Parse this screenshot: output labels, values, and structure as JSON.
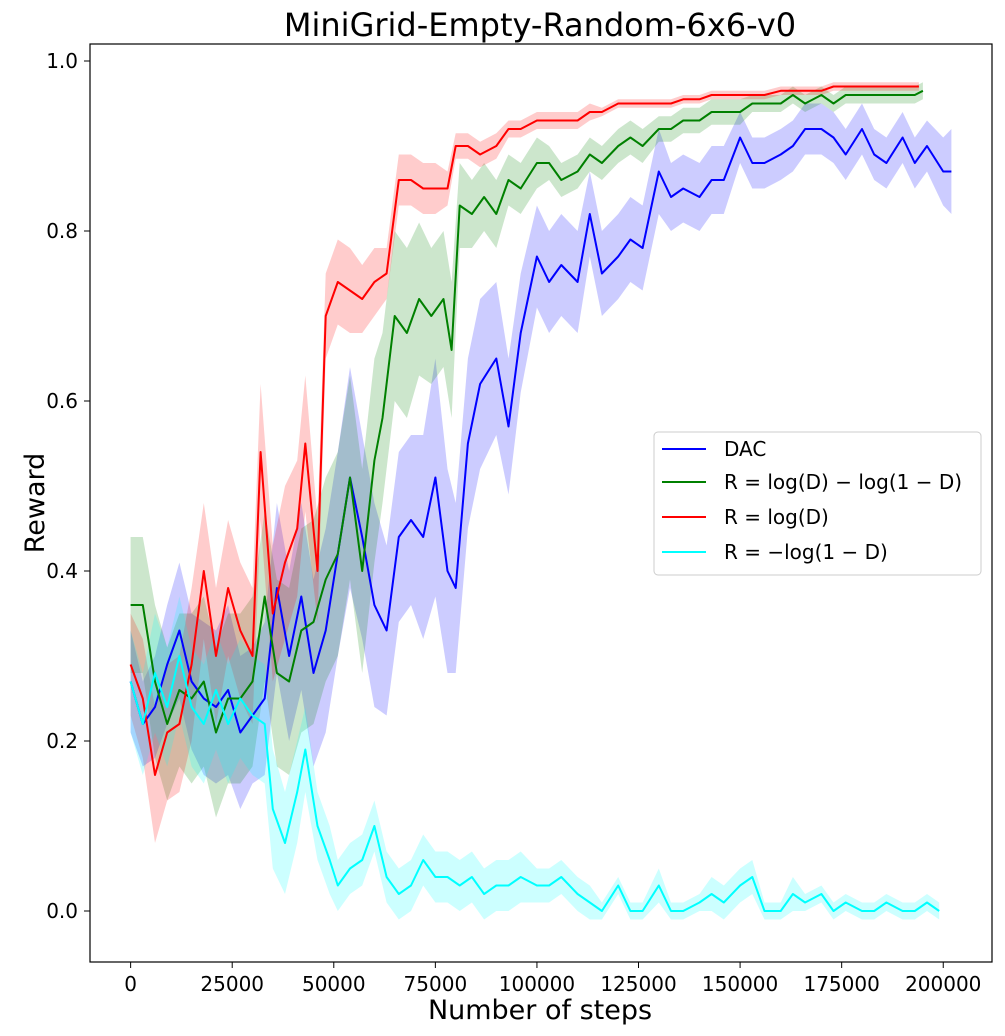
{
  "chart_data": {
    "type": "line",
    "title": "MiniGrid-Empty-Random-6x6-v0",
    "xlabel": "Number of steps",
    "ylabel": "Reward",
    "xlim": [
      -10000,
      212000
    ],
    "ylim": [
      -0.06,
      1.02
    ],
    "xticks": [
      0,
      25000,
      50000,
      75000,
      100000,
      125000,
      150000,
      175000,
      200000
    ],
    "yticks": [
      0.0,
      0.2,
      0.4,
      0.6,
      0.8,
      1.0
    ],
    "ytick_labels": [
      "0.0",
      "0.2",
      "0.4",
      "0.6",
      "0.8",
      "1.0"
    ],
    "legend_position": "center-right",
    "grid": false,
    "series": [
      {
        "name": "DAC",
        "color": "#0000ff",
        "x": [
          0,
          3000,
          6000,
          9000,
          12000,
          15000,
          18000,
          21000,
          24000,
          27000,
          30000,
          33000,
          36000,
          39000,
          42000,
          45000,
          48000,
          51000,
          54000,
          57000,
          60000,
          63000,
          66000,
          69000,
          72000,
          75000,
          78000,
          80000,
          83000,
          86000,
          90000,
          93000,
          96000,
          100000,
          103000,
          106000,
          110000,
          113000,
          116000,
          120000,
          123000,
          126000,
          130000,
          133000,
          136000,
          140000,
          143000,
          146000,
          150000,
          153000,
          156000,
          160000,
          163000,
          166000,
          170000,
          173000,
          176000,
          180000,
          183000,
          186000,
          190000,
          193000,
          196000,
          200000,
          202000
        ],
        "y": [
          0.27,
          0.22,
          0.24,
          0.29,
          0.33,
          0.27,
          0.25,
          0.24,
          0.26,
          0.21,
          0.23,
          0.25,
          0.38,
          0.3,
          0.37,
          0.28,
          0.33,
          0.42,
          0.51,
          0.44,
          0.36,
          0.33,
          0.44,
          0.46,
          0.44,
          0.51,
          0.4,
          0.38,
          0.55,
          0.62,
          0.65,
          0.57,
          0.68,
          0.77,
          0.74,
          0.76,
          0.74,
          0.82,
          0.75,
          0.77,
          0.79,
          0.78,
          0.87,
          0.84,
          0.85,
          0.84,
          0.86,
          0.86,
          0.91,
          0.88,
          0.88,
          0.89,
          0.9,
          0.92,
          0.92,
          0.91,
          0.89,
          0.92,
          0.89,
          0.88,
          0.91,
          0.88,
          0.9,
          0.87,
          0.87
        ],
        "band": [
          0.06,
          0.05,
          0.06,
          0.07,
          0.08,
          0.08,
          0.09,
          0.09,
          0.1,
          0.09,
          0.08,
          0.09,
          0.1,
          0.1,
          0.11,
          0.11,
          0.12,
          0.12,
          0.13,
          0.12,
          0.12,
          0.1,
          0.1,
          0.1,
          0.12,
          0.14,
          0.12,
          0.1,
          0.1,
          0.1,
          0.09,
          0.08,
          0.07,
          0.06,
          0.06,
          0.06,
          0.06,
          0.05,
          0.05,
          0.05,
          0.05,
          0.05,
          0.05,
          0.04,
          0.04,
          0.04,
          0.04,
          0.04,
          0.03,
          0.03,
          0.03,
          0.03,
          0.03,
          0.03,
          0.03,
          0.03,
          0.03,
          0.03,
          0.03,
          0.03,
          0.03,
          0.03,
          0.03,
          0.04,
          0.05
        ]
      },
      {
        "name": "R = log(D) − log(1 − D)",
        "color": "#008000",
        "x": [
          0,
          3000,
          6000,
          9000,
          12000,
          15000,
          18000,
          21000,
          24000,
          27000,
          30000,
          33000,
          36000,
          39000,
          42000,
          45000,
          48000,
          51000,
          54000,
          57000,
          60000,
          62000,
          65000,
          68000,
          71000,
          74000,
          77000,
          79000,
          81000,
          84000,
          87000,
          90000,
          93000,
          96000,
          100000,
          103000,
          106000,
          110000,
          113000,
          116000,
          120000,
          123000,
          126000,
          130000,
          133000,
          136000,
          140000,
          143000,
          146000,
          150000,
          153000,
          156000,
          160000,
          163000,
          166000,
          170000,
          173000,
          176000,
          180000,
          183000,
          186000,
          190000,
          193000,
          195000
        ],
        "y": [
          0.36,
          0.36,
          0.27,
          0.22,
          0.26,
          0.25,
          0.27,
          0.21,
          0.25,
          0.25,
          0.27,
          0.37,
          0.28,
          0.27,
          0.33,
          0.34,
          0.39,
          0.42,
          0.51,
          0.4,
          0.53,
          0.58,
          0.7,
          0.68,
          0.72,
          0.7,
          0.72,
          0.66,
          0.83,
          0.82,
          0.84,
          0.82,
          0.86,
          0.85,
          0.88,
          0.88,
          0.86,
          0.87,
          0.89,
          0.88,
          0.9,
          0.91,
          0.9,
          0.92,
          0.92,
          0.93,
          0.93,
          0.94,
          0.94,
          0.94,
          0.95,
          0.95,
          0.95,
          0.96,
          0.95,
          0.96,
          0.95,
          0.96,
          0.96,
          0.96,
          0.96,
          0.96,
          0.96,
          0.965
        ],
        "band": [
          0.08,
          0.08,
          0.09,
          0.09,
          0.09,
          0.1,
          0.1,
          0.1,
          0.1,
          0.1,
          0.1,
          0.1,
          0.11,
          0.11,
          0.12,
          0.12,
          0.12,
          0.12,
          0.12,
          0.12,
          0.12,
          0.1,
          0.1,
          0.1,
          0.09,
          0.08,
          0.08,
          0.08,
          0.05,
          0.04,
          0.04,
          0.04,
          0.03,
          0.03,
          0.03,
          0.02,
          0.02,
          0.02,
          0.02,
          0.02,
          0.02,
          0.02,
          0.02,
          0.015,
          0.015,
          0.015,
          0.015,
          0.015,
          0.015,
          0.015,
          0.01,
          0.01,
          0.01,
          0.01,
          0.01,
          0.01,
          0.01,
          0.01,
          0.01,
          0.01,
          0.01,
          0.01,
          0.01,
          0.01
        ]
      },
      {
        "name": "R = log(D)",
        "color": "#ff0000",
        "x": [
          0,
          3000,
          6000,
          9000,
          12000,
          15000,
          18000,
          21000,
          24000,
          27000,
          30000,
          32000,
          35000,
          38000,
          41000,
          43000,
          46000,
          48000,
          51000,
          54000,
          57000,
          60000,
          63000,
          66000,
          69000,
          72000,
          75000,
          78000,
          80000,
          83000,
          86000,
          90000,
          93000,
          96000,
          100000,
          103000,
          106000,
          110000,
          113000,
          116000,
          120000,
          123000,
          126000,
          130000,
          133000,
          136000,
          140000,
          143000,
          146000,
          150000,
          153000,
          156000,
          160000,
          163000,
          166000,
          170000,
          173000,
          176000,
          180000,
          183000,
          186000,
          190000,
          194000
        ],
        "y": [
          0.29,
          0.25,
          0.16,
          0.21,
          0.22,
          0.29,
          0.4,
          0.3,
          0.38,
          0.33,
          0.3,
          0.54,
          0.35,
          0.41,
          0.45,
          0.55,
          0.4,
          0.7,
          0.74,
          0.73,
          0.72,
          0.74,
          0.75,
          0.86,
          0.86,
          0.85,
          0.85,
          0.85,
          0.9,
          0.9,
          0.89,
          0.9,
          0.92,
          0.92,
          0.93,
          0.93,
          0.93,
          0.93,
          0.94,
          0.94,
          0.95,
          0.95,
          0.95,
          0.95,
          0.95,
          0.955,
          0.955,
          0.96,
          0.96,
          0.96,
          0.96,
          0.96,
          0.965,
          0.965,
          0.965,
          0.965,
          0.97,
          0.97,
          0.97,
          0.97,
          0.97,
          0.97,
          0.97
        ],
        "band": [
          0.06,
          0.07,
          0.08,
          0.08,
          0.08,
          0.09,
          0.08,
          0.08,
          0.08,
          0.08,
          0.08,
          0.08,
          0.08,
          0.09,
          0.08,
          0.08,
          0.06,
          0.05,
          0.05,
          0.05,
          0.04,
          0.04,
          0.03,
          0.03,
          0.03,
          0.03,
          0.03,
          0.02,
          0.015,
          0.015,
          0.015,
          0.015,
          0.01,
          0.01,
          0.01,
          0.01,
          0.01,
          0.01,
          0.01,
          0.005,
          0.005,
          0.005,
          0.005,
          0.005,
          0.005,
          0.005,
          0.005,
          0.005,
          0.005,
          0.005,
          0.005,
          0.005,
          0.005,
          0.005,
          0.005,
          0.005,
          0.005,
          0.005,
          0.005,
          0.005,
          0.005,
          0.005,
          0.005
        ]
      },
      {
        "name": "R = −log(1 − D)",
        "color": "#00ffff",
        "x": [
          0,
          3000,
          6000,
          9000,
          12000,
          15000,
          18000,
          21000,
          24000,
          27000,
          30000,
          33000,
          35000,
          38000,
          41000,
          43000,
          46000,
          49000,
          51000,
          54000,
          57000,
          60000,
          63000,
          66000,
          69000,
          72000,
          75000,
          78000,
          81000,
          84000,
          87000,
          90000,
          93000,
          96000,
          100000,
          103000,
          106000,
          110000,
          113000,
          116000,
          120000,
          123000,
          126000,
          130000,
          133000,
          136000,
          140000,
          143000,
          146000,
          150000,
          153000,
          156000,
          160000,
          163000,
          166000,
          170000,
          173000,
          176000,
          180000,
          183000,
          186000,
          190000,
          193000,
          196000,
          199000
        ],
        "y": [
          0.27,
          0.22,
          0.28,
          0.24,
          0.3,
          0.24,
          0.22,
          0.26,
          0.22,
          0.25,
          0.23,
          0.22,
          0.12,
          0.08,
          0.14,
          0.19,
          0.1,
          0.06,
          0.03,
          0.05,
          0.06,
          0.1,
          0.04,
          0.02,
          0.03,
          0.06,
          0.04,
          0.04,
          0.03,
          0.04,
          0.02,
          0.03,
          0.03,
          0.04,
          0.03,
          0.03,
          0.04,
          0.02,
          0.01,
          0.0,
          0.03,
          0.0,
          0.0,
          0.03,
          0.0,
          0.0,
          0.01,
          0.02,
          0.01,
          0.03,
          0.04,
          0.0,
          0.0,
          0.02,
          0.01,
          0.02,
          0.0,
          0.01,
          0.0,
          0.0,
          0.01,
          0.0,
          0.0,
          0.01,
          0.0
        ],
        "band": [
          0.06,
          0.06,
          0.07,
          0.07,
          0.07,
          0.07,
          0.07,
          0.07,
          0.07,
          0.07,
          0.07,
          0.07,
          0.07,
          0.06,
          0.06,
          0.05,
          0.04,
          0.04,
          0.03,
          0.03,
          0.03,
          0.03,
          0.03,
          0.03,
          0.03,
          0.03,
          0.03,
          0.03,
          0.03,
          0.03,
          0.03,
          0.03,
          0.03,
          0.03,
          0.02,
          0.02,
          0.02,
          0.02,
          0.02,
          0.01,
          0.01,
          0.01,
          0.01,
          0.02,
          0.01,
          0.01,
          0.01,
          0.02,
          0.02,
          0.02,
          0.02,
          0.01,
          0.01,
          0.02,
          0.01,
          0.01,
          0.01,
          0.01,
          0.01,
          0.01,
          0.01,
          0.01,
          0.01,
          0.01,
          0.01
        ]
      }
    ]
  }
}
